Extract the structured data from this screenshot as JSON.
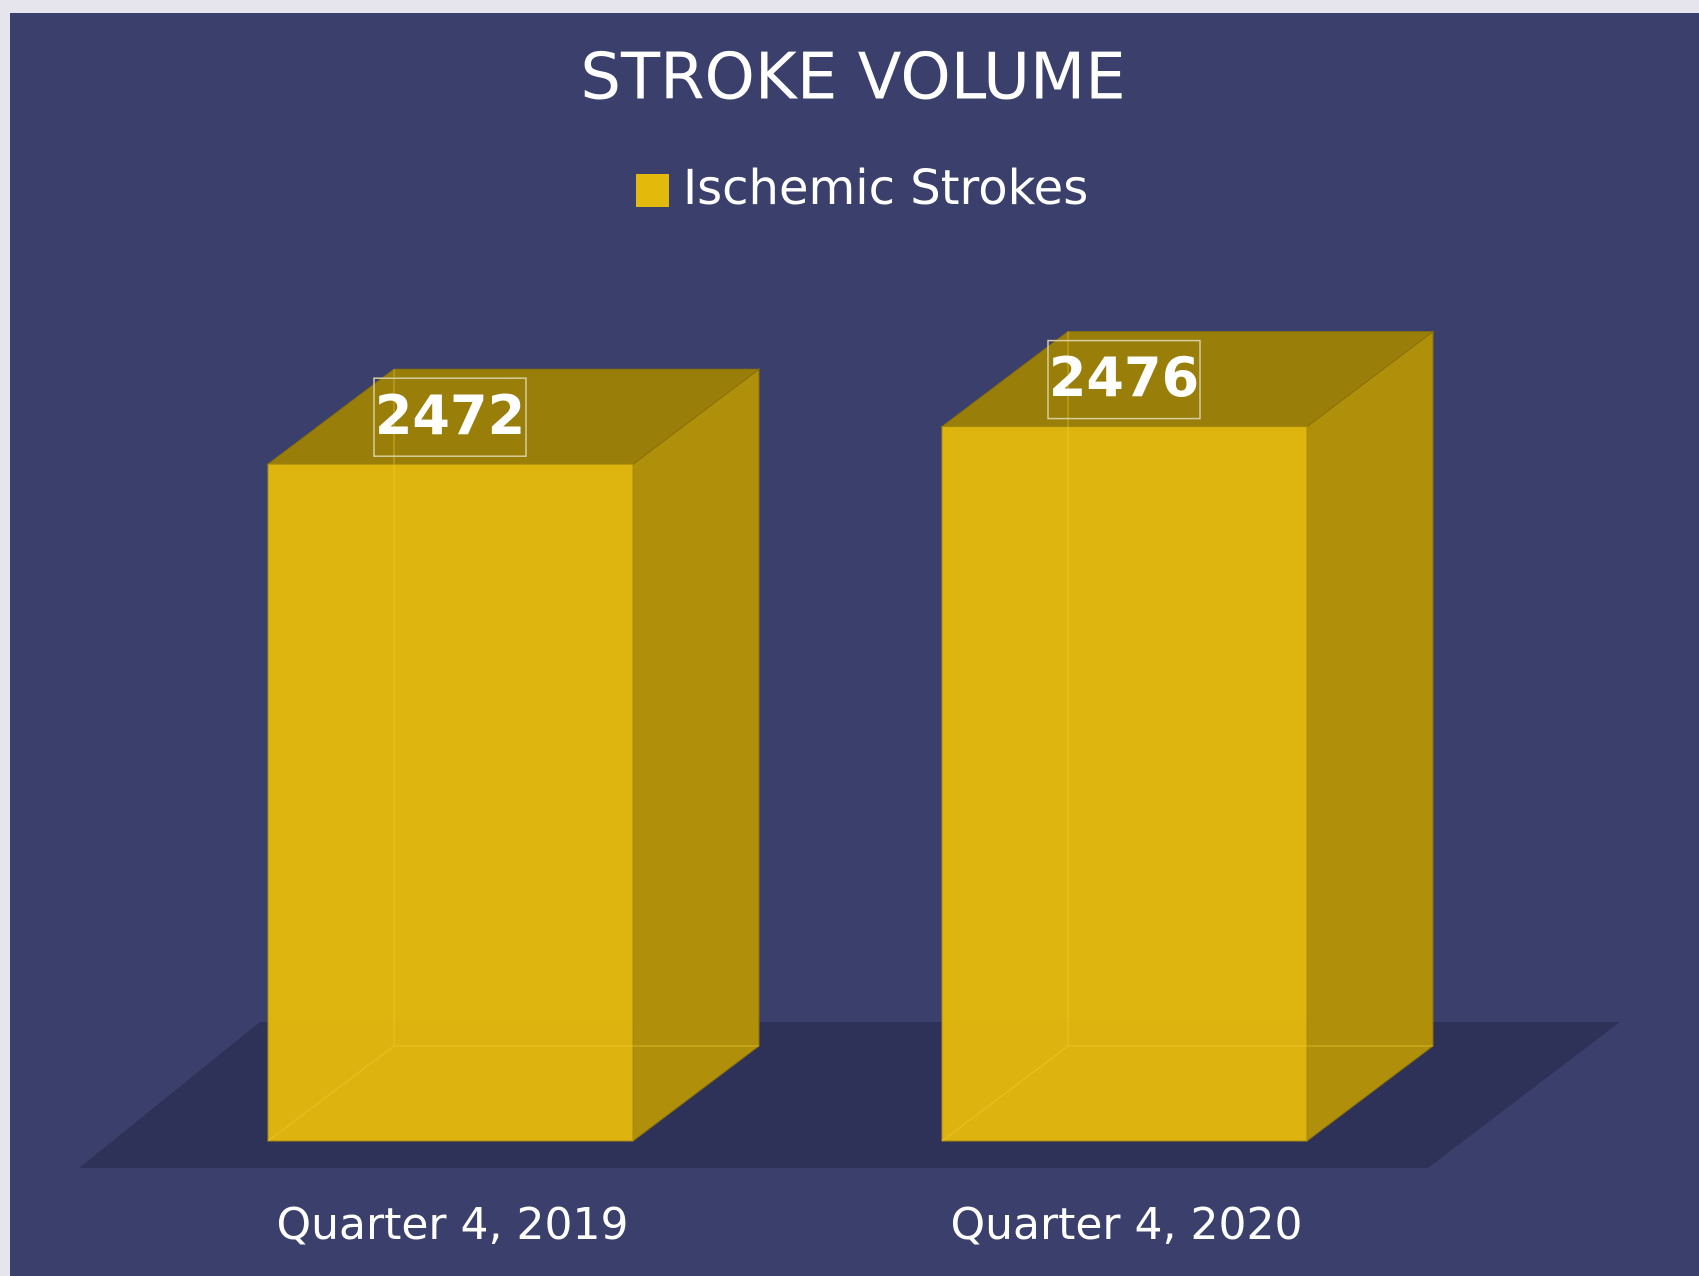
{
  "chart_data": {
    "type": "bar3d",
    "title": "STROKE VOLUME",
    "categories": [
      "Quarter 4, 2019",
      "Quarter 4, 2020"
    ],
    "series": [
      {
        "name": "Ischemic Strokes",
        "color": "#e3b90c",
        "values": [
          2472,
          2476
        ]
      }
    ],
    "ylim": [
      2400,
      2480
    ],
    "legend": "top"
  }
}
